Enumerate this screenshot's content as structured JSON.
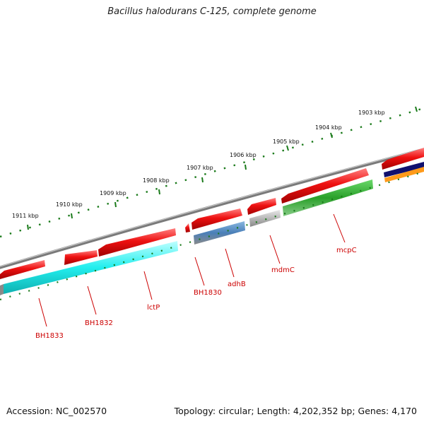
{
  "title": "Bacillus halodurans C-125, complete genome",
  "accession": "Accession: NC_002570",
  "stats": "Topology: circular; Length: 4,202,352 bp; Genes: 4,170",
  "kbp_labels": [
    "1903 kbp",
    "1904 kbp",
    "1905 kbp",
    "1906 kbp",
    "1907 kbp",
    "1908 kbp",
    "1909 kbp",
    "1910 kbp",
    "1911 kbp"
  ],
  "genes": [
    {
      "name": "BH1833"
    },
    {
      "name": "BH1832"
    },
    {
      "name": "lctP"
    },
    {
      "name": "BH1830"
    },
    {
      "name": "adhB"
    },
    {
      "name": "mdmC"
    },
    {
      "name": "mcpC"
    }
  ],
  "colors": {
    "backbone": "#7a7a7a",
    "cds": "#ee1111",
    "tick": "#1a7a1a",
    "label": "#cc0000",
    "cyan": "#22eeee",
    "blue": "#4a7fb8",
    "grey": "#b8b8b8",
    "green": "#2aa02a",
    "navy": "#10106e",
    "orange": "#ff9a1a"
  }
}
